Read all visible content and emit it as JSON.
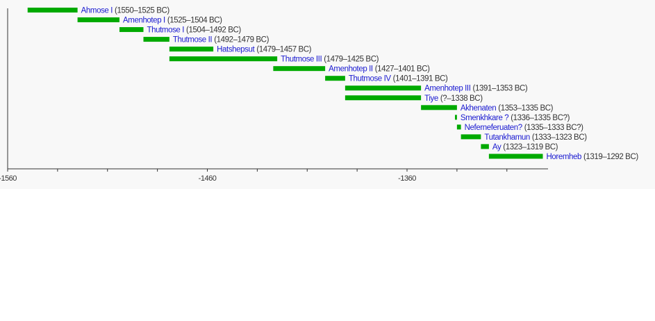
{
  "chart_data": {
    "type": "timeline",
    "title": "",
    "xlabel": "",
    "ylabel": "",
    "xlim": [
      -1560,
      -1290
    ],
    "x_ticks": [
      -1560,
      -1535,
      -1510,
      -1485,
      -1460,
      -1435,
      -1410,
      -1385,
      -1360,
      -1335,
      -1310
    ],
    "x_tick_labels": [
      {
        "value": -1560,
        "label": "-1560"
      },
      {
        "value": -1460,
        "label": "-1460"
      },
      {
        "value": -1360,
        "label": "-1360"
      }
    ],
    "bar_color": "#00aa00",
    "name_color": "#1a1ad0",
    "rows": [
      {
        "name": "Ahmose I",
        "period": "(1550–1525 BC)",
        "start": -1550,
        "end": -1525
      },
      {
        "name": "Amenhotep I",
        "period": "(1525–1504 BC)",
        "start": -1525,
        "end": -1504
      },
      {
        "name": "Thutmose I",
        "period": "(1504–1492 BC)",
        "start": -1504,
        "end": -1492
      },
      {
        "name": "Thutmose II",
        "period": "(1492–1479 BC)",
        "start": -1492,
        "end": -1479
      },
      {
        "name": "Hatshepsut",
        "period": "(1479–1457 BC)",
        "start": -1479,
        "end": -1457
      },
      {
        "name": "Thutmose III",
        "period": "(1479–1425 BC)",
        "start": -1479,
        "end": -1425
      },
      {
        "name": "Amenhotep II",
        "period": "(1427–1401 BC)",
        "start": -1427,
        "end": -1401
      },
      {
        "name": "Thutmose IV",
        "period": "(1401–1391 BC)",
        "start": -1401,
        "end": -1391
      },
      {
        "name": "Amenhotep III",
        "period": "(1391–1353 BC)",
        "start": -1391,
        "end": -1353
      },
      {
        "name": "Tiye",
        "period": "(?–1338 BC)",
        "start": -1391,
        "end": -1353
      },
      {
        "name": "Akhenaten",
        "period": "(1353–1335 BC)",
        "start": -1353,
        "end": -1335
      },
      {
        "name": "Smenkhkare ?",
        "period": "(1336–1335 BC?)",
        "start": -1336,
        "end": -1335
      },
      {
        "name": "Neferneferuaten?",
        "period": "(1335–1333 BC?)",
        "start": -1335,
        "end": -1333
      },
      {
        "name": "Tutankhamun",
        "period": "(1333–1323 BC)",
        "start": -1333,
        "end": -1323
      },
      {
        "name": "Ay",
        "period": "(1323–1319 BC)",
        "start": -1323,
        "end": -1319
      },
      {
        "name": "Horemheb",
        "period": "(1319–1292 BC)",
        "start": -1319,
        "end": -1292
      }
    ]
  }
}
